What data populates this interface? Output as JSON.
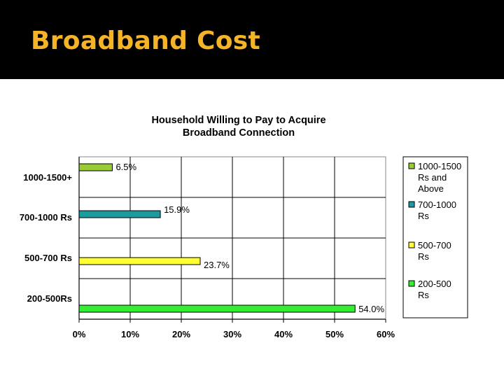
{
  "slide": {
    "title": "Broadband Cost"
  },
  "colors": {
    "title_bar": "#000000",
    "title_text": "#f5b428"
  },
  "chart_data": {
    "type": "bar",
    "orientation": "horizontal",
    "title": "Household Willing to Pay to Acquire\nBroadband Connection",
    "categories": [
      "1000-1500+",
      "700-1000 Rs",
      "500-700 Rs",
      "200-500Rs"
    ],
    "values": [
      6.5,
      15.9,
      23.7,
      54.0
    ],
    "value_labels": [
      "6.5%",
      "15.9%",
      "23.7%",
      "54.0%"
    ],
    "bar_colors": [
      "#99cc33",
      "#1b9aa0",
      "#ffff33",
      "#33ee33"
    ],
    "xlim": [
      0,
      60
    ],
    "xticks": [
      0,
      10,
      20,
      30,
      40,
      50,
      60
    ],
    "xtick_labels": [
      "0%",
      "10%",
      "20%",
      "30%",
      "40%",
      "50%",
      "60%"
    ],
    "grid": true,
    "legend": {
      "placement": "right",
      "entries": [
        {
          "label": "1000-1500\nRs and\nAbove",
          "color": "#99cc33"
        },
        {
          "label": "700-1000\nRs",
          "color": "#1b9aa0"
        },
        {
          "label": "500-700\nRs",
          "color": "#ffff33"
        },
        {
          "label": "200-500\nRs",
          "color": "#33ee33"
        }
      ]
    }
  }
}
